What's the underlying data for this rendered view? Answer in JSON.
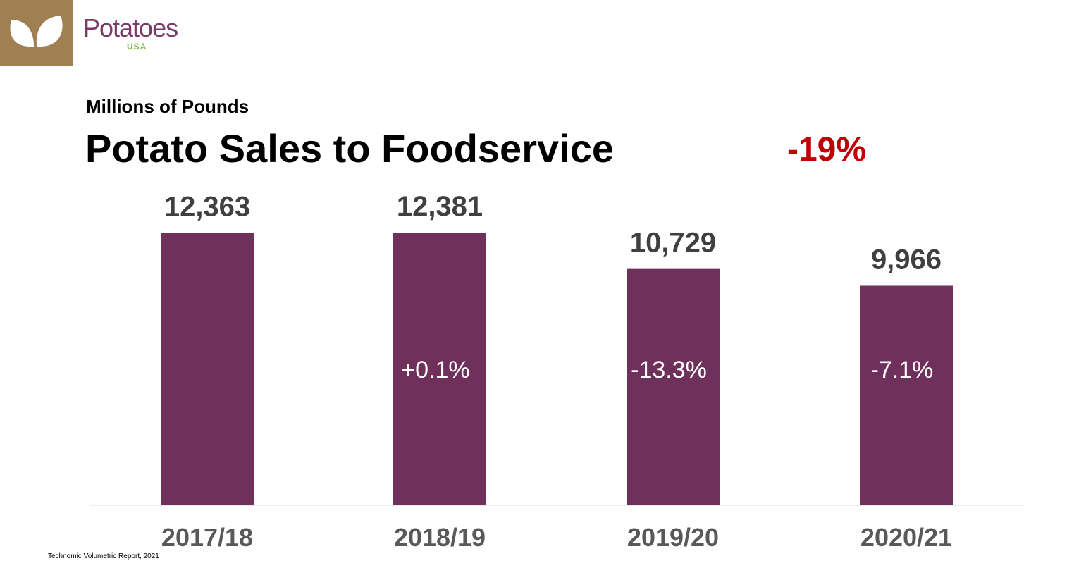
{
  "logo": {
    "brand_name": "Potatoes",
    "brand_sub": "USA",
    "block_color": "#a07f53",
    "leaf_icon": "two-leaves-icon"
  },
  "header": {
    "subtitle": "Millions of Pounds",
    "title": "Potato Sales to Foodservice",
    "total_change": "-19%"
  },
  "chart_data": {
    "type": "bar",
    "title": "Potato Sales to Foodservice",
    "subtitle": "Millions of Pounds",
    "categories": [
      "2017/18",
      "2018/19",
      "2019/20",
      "2020/21"
    ],
    "values": [
      12363,
      12381,
      10729,
      9966
    ],
    "value_labels": [
      "12,363",
      "12,381",
      "10,729",
      "9,966"
    ],
    "change_labels": [
      "",
      "+0.1%",
      "-13.3%",
      "-7.1%"
    ],
    "ylim": [
      0,
      12381
    ],
    "grid": false,
    "bar_color": "#70305c",
    "total_change_color": "#c00000"
  },
  "footer": {
    "source": "Technomic Volumetric Report, 2021"
  }
}
